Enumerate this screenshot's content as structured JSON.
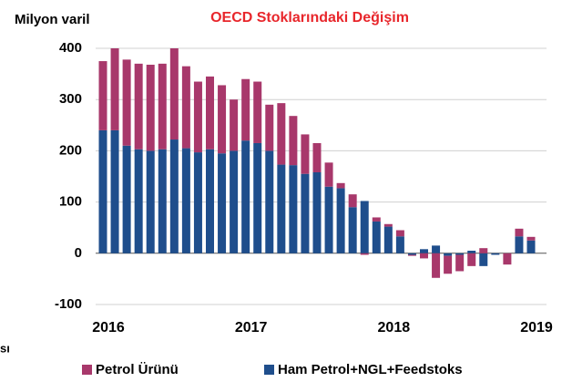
{
  "chart_data": {
    "type": "bar",
    "stacked": true,
    "title": "OECD Stoklarındaki Değişim",
    "y_label": "Milyon varil",
    "note": "sı",
    "categories": [
      "2016",
      null,
      null,
      null,
      null,
      null,
      null,
      null,
      null,
      null,
      null,
      null,
      "2017",
      null,
      null,
      null,
      null,
      null,
      null,
      null,
      null,
      null,
      null,
      null,
      "2018",
      null,
      null,
      null,
      null,
      null,
      null,
      null,
      null,
      null,
      null,
      null,
      "2019"
    ],
    "series": [
      {
        "name": "Ham Petrol+NGL+Feedstoks",
        "color": "#1f4e8c",
        "values": [
          240,
          240,
          210,
          203,
          200,
          203,
          222,
          205,
          197,
          203,
          195,
          200,
          220,
          215,
          200,
          173,
          172,
          155,
          158,
          130,
          127,
          90,
          102,
          62,
          52,
          33,
          -3,
          8,
          15,
          -5,
          -3,
          5,
          -25,
          -3,
          0,
          33,
          25
        ]
      },
      {
        "name": "Petrol Ürünü",
        "color": "#a8386b",
        "values": [
          135,
          160,
          168,
          167,
          168,
          167,
          178,
          160,
          138,
          142,
          133,
          100,
          120,
          120,
          90,
          120,
          96,
          77,
          57,
          47,
          10,
          25,
          -3,
          8,
          5,
          12,
          -2,
          -10,
          -48,
          -35,
          -32,
          -25,
          10,
          0,
          -22,
          15,
          7
        ]
      }
    ],
    "ylim": [
      -100,
      400
    ],
    "yticks": [
      -100,
      0,
      100,
      200,
      300,
      400
    ],
    "grid": true,
    "legend": "bottom"
  }
}
